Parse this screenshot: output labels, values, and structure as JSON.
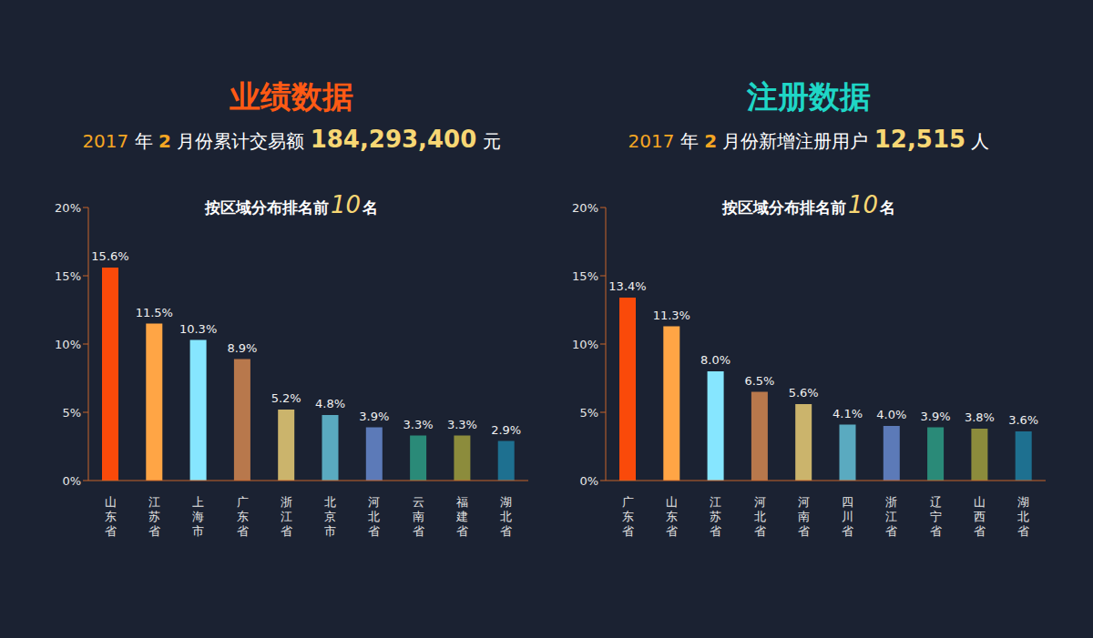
{
  "chart_data": [
    {
      "type": "bar",
      "title": "业绩数据",
      "subtitle": "2017 年 2 月份累计交易额 184,293,400 元",
      "annotation": "按区域分布排名前10名",
      "categories": [
        "山东省",
        "江苏省",
        "上海市",
        "广东省",
        "浙江省",
        "北京市",
        "河北省",
        "云南省",
        "福建省",
        "湖北省"
      ],
      "values": [
        15.6,
        11.5,
        10.3,
        8.9,
        5.2,
        4.8,
        3.9,
        3.3,
        3.3,
        2.9
      ],
      "value_labels": [
        "15.6%",
        "11.5%",
        "10.3%",
        "8.9%",
        "5.2%",
        "4.8%",
        "3.9%",
        "3.3%",
        "3.3%",
        "2.9%"
      ],
      "colors": [
        "#fa4a0a",
        "#ffa545",
        "#86e6ff",
        "#b8784c",
        "#cbb46c",
        "#5aaac0",
        "#5c7ab8",
        "#2a8a78",
        "#8c8c3c",
        "#1e7090"
      ],
      "ylim": [
        0,
        20
      ],
      "yticks": [
        {
          "value": 0,
          "label": "0%"
        },
        {
          "value": 5,
          "label": "5%"
        },
        {
          "value": 10,
          "label": "10%"
        },
        {
          "value": 15,
          "label": "15%"
        },
        {
          "value": 20,
          "label": "20%"
        }
      ],
      "grid": false,
      "data_labels": true
    },
    {
      "type": "bar",
      "title": "注册数据",
      "subtitle": "2017 年 2 月份新增注册用户 12,515 人",
      "annotation": "按区域分布排名前10名",
      "categories": [
        "广东省",
        "山东省",
        "江苏省",
        "河北省",
        "河南省",
        "四川省",
        "浙江省",
        "辽宁省",
        "山西省",
        "湖北省"
      ],
      "values": [
        13.4,
        11.3,
        8.0,
        6.5,
        5.6,
        4.1,
        4.0,
        3.9,
        3.8,
        3.6
      ],
      "value_labels": [
        "13.4%",
        "11.3%",
        "8.0%",
        "6.5%",
        "5.6%",
        "4.1%",
        "4.0%",
        "3.9%",
        "3.8%",
        "3.6%"
      ],
      "colors": [
        "#fa4a0a",
        "#ffa545",
        "#86e6ff",
        "#b8784c",
        "#cbb46c",
        "#5aaac0",
        "#5c7ab8",
        "#2a8a78",
        "#8c8c3c",
        "#1e7090"
      ],
      "ylim": [
        0,
        20
      ],
      "yticks": [
        {
          "value": 0,
          "label": "0%"
        },
        {
          "value": 5,
          "label": "5%"
        },
        {
          "value": 10,
          "label": "10%"
        },
        {
          "value": 15,
          "label": "15%"
        },
        {
          "value": 20,
          "label": "20%"
        }
      ],
      "grid": false,
      "data_labels": true
    }
  ]
}
